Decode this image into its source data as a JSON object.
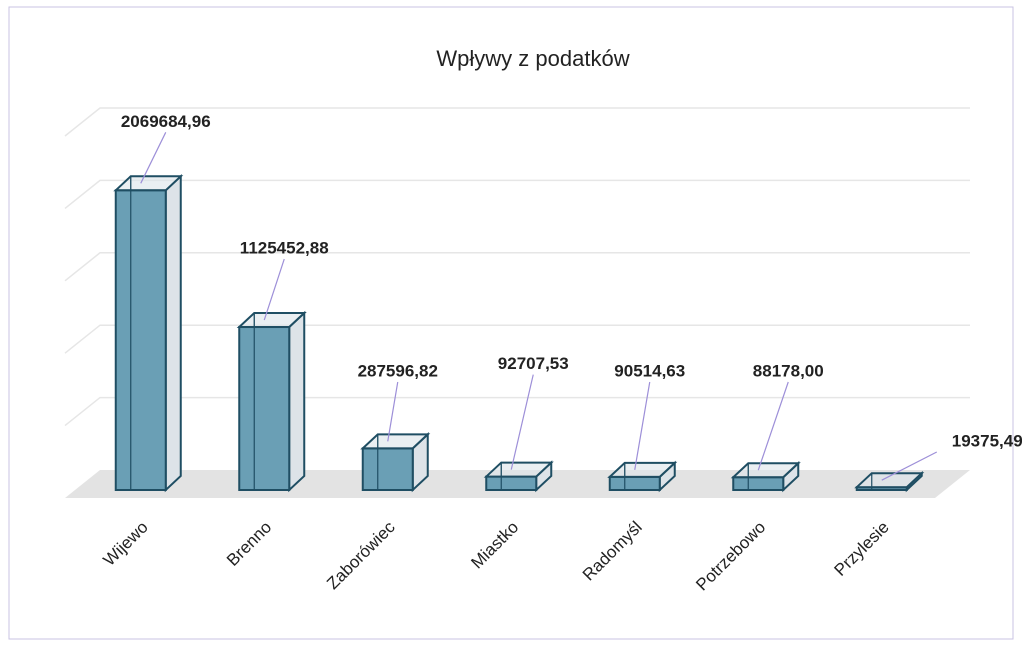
{
  "chart_data": {
    "type": "bar3d",
    "title": "Wpływy z podatków",
    "categories": [
      "Wijewo",
      "Brenno",
      "Zaborówiec",
      "Miastko",
      "Radomyśl",
      "Potrzebowo",
      "Przylesie"
    ],
    "values": [
      2069684.96,
      1125452.88,
      287596.82,
      92707.53,
      90514.63,
      88178.0,
      19375.49
    ],
    "value_labels": [
      "2069684,96",
      "1125452,88",
      "287596,82",
      "92707,53",
      "90514,63",
      "88178,00",
      "19375,49"
    ],
    "color": "#6a9fb5",
    "ylim": [
      0,
      2500000
    ],
    "yticks": [
      0,
      500000,
      1000000,
      1500000,
      2000000,
      2500000
    ],
    "grid": true
  }
}
